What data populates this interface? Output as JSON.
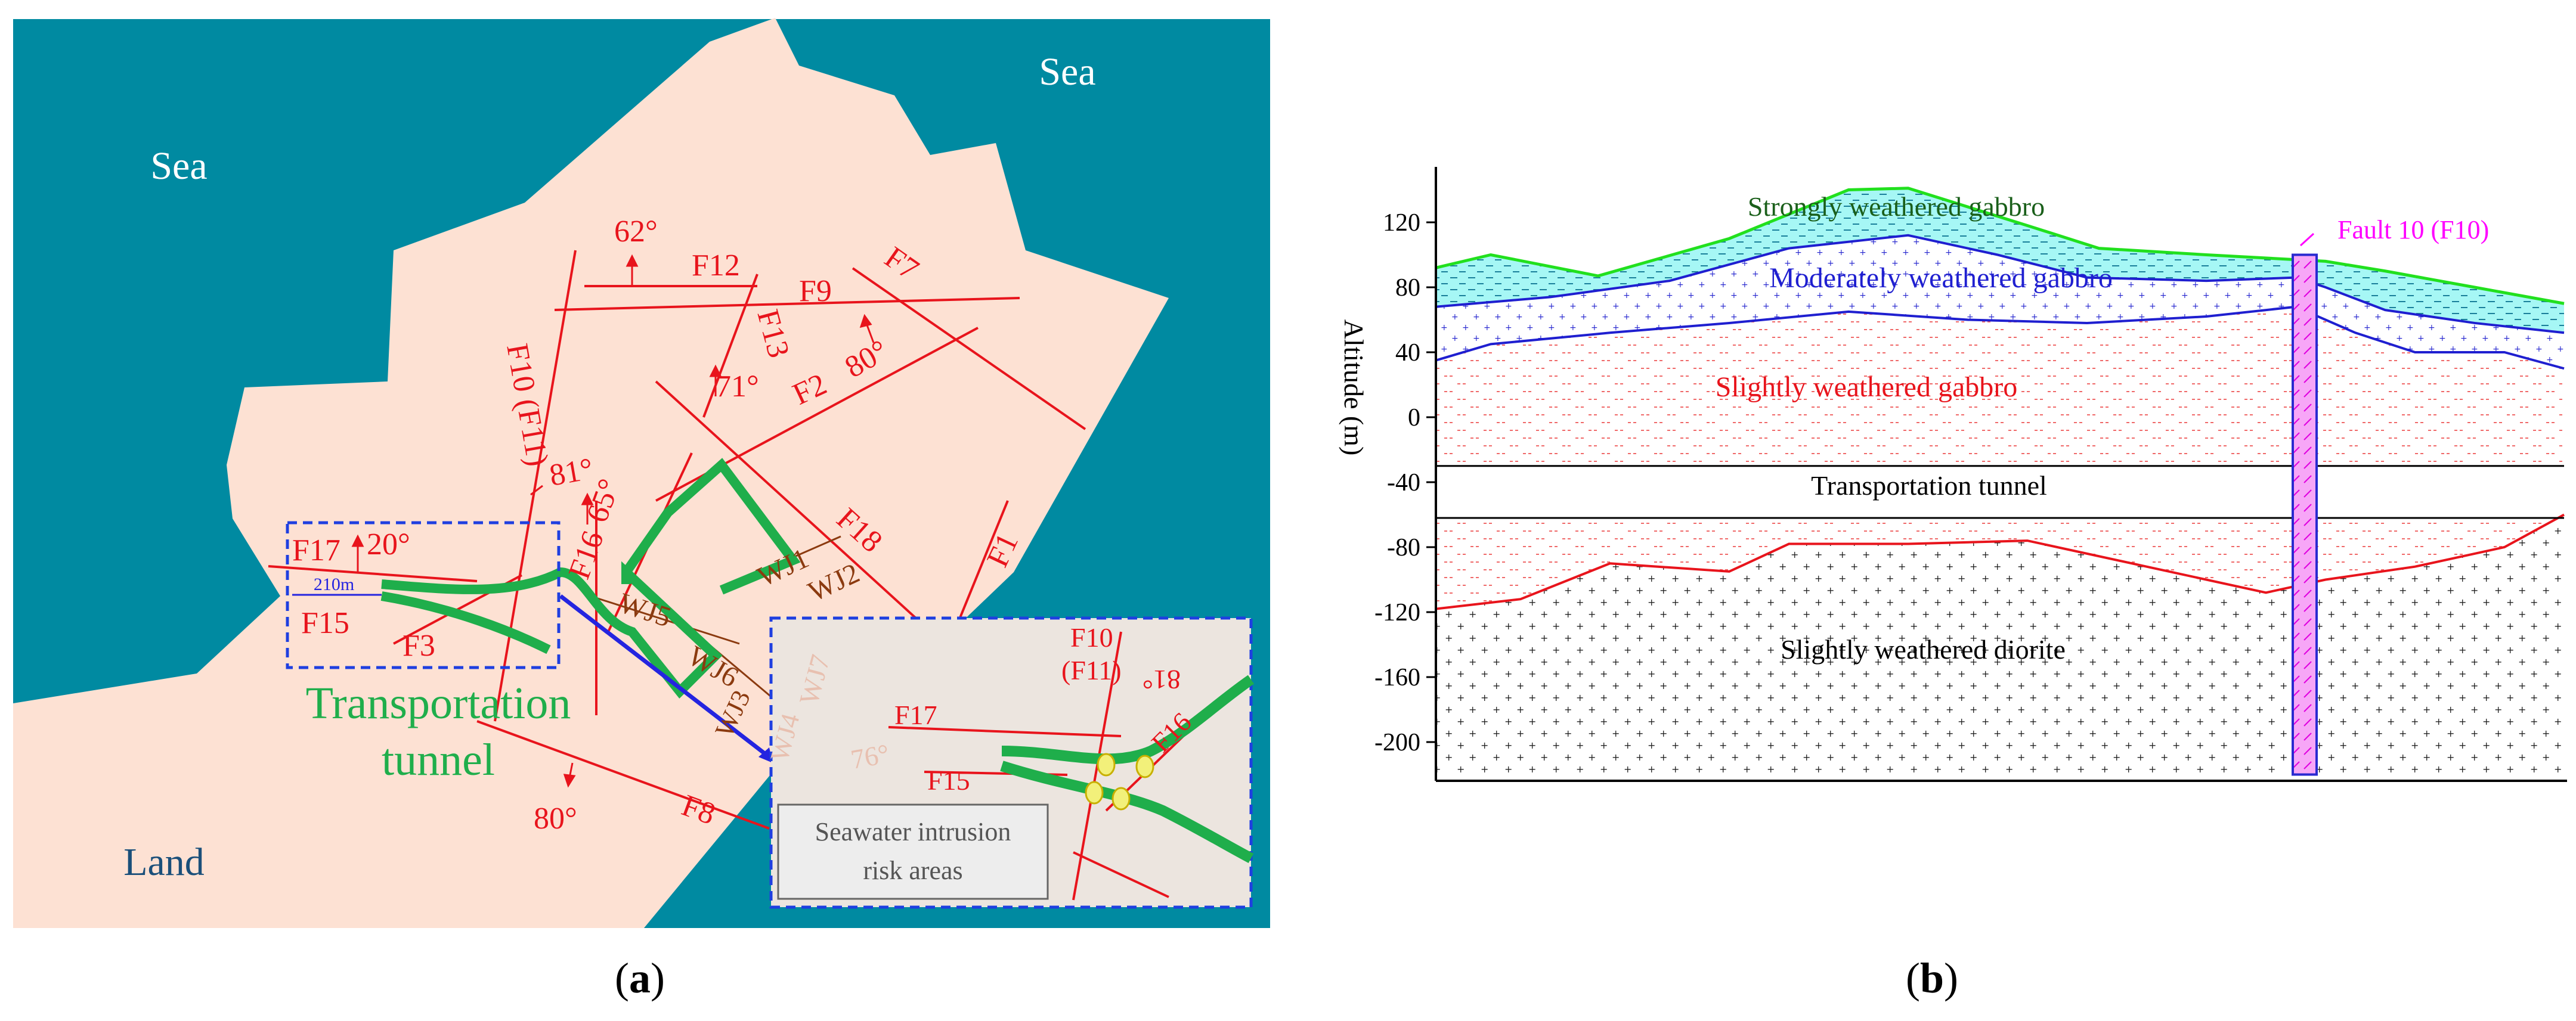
{
  "panel_a": {
    "caption": "(a)",
    "caption_letter": "a",
    "sea_labels": [
      "Sea",
      "Sea"
    ],
    "land_label": "Land",
    "tunnel_label": [
      "Transportation",
      "tunnel"
    ],
    "faults": {
      "F12": "F12",
      "F9": "F9",
      "F7": "F7",
      "F13": "F13",
      "F2": "F2",
      "F10": "F10 (F11)",
      "F16": "F16",
      "F18": "F18",
      "F1": "F1",
      "F17": "F17",
      "F15": "F15",
      "F3": "F3",
      "F8": "F8"
    },
    "angles": {
      "a62": "62°",
      "a80": "80°",
      "a71": "71°",
      "a81": "81°",
      "a65": "65°",
      "a20": "20°",
      "a80b": "80°"
    },
    "wj": {
      "wj1": "WJ1",
      "wj2": "WJ2",
      "wj5": "WJ5",
      "wj6": "WJ6",
      "wj3": "WJ3",
      "wj4": "WJ4",
      "wj7": "WJ7"
    },
    "distance": "210m",
    "inset": {
      "f10": "F10",
      "f11": "(F11)",
      "a81": "81°",
      "a76": "76°",
      "f17": "F17",
      "f15": "F15",
      "f16": "F16",
      "risk_label": [
        "Seawater intrusion",
        "risk areas"
      ]
    },
    "colors": {
      "sea": "#008aa1",
      "land": "#fde1d3",
      "fault": "#e8141c",
      "tunnel": "#1fae4b",
      "joint": "#8b3a0f",
      "box": "#1f3fe0"
    }
  },
  "panel_b": {
    "caption": "(b)",
    "caption_letter": "b",
    "y_axis_label": "Altitude (m)",
    "y_ticks": [
      "120",
      "80",
      "40",
      "0",
      "-40",
      "-80",
      "-120",
      "-160",
      "-200"
    ],
    "y_tick_values": [
      120,
      80,
      40,
      0,
      -40,
      -80,
      -120,
      -160,
      -200
    ],
    "ylim": [
      -220,
      150
    ],
    "layers": {
      "strong": "Strongly weathered gabbro",
      "moderate": "Moderately weathered gabbro",
      "slight": "Slightly weathered gabbro",
      "tunnel": "Transportation tunnel",
      "diorite": "Slightly weathered diorite"
    },
    "fault_label": "Fault 10 (F10)",
    "colors": {
      "strong": "#22e01e",
      "moderate": "#1f1fd0",
      "slight": "#e8141c",
      "fault": "#ff00ff"
    }
  }
}
